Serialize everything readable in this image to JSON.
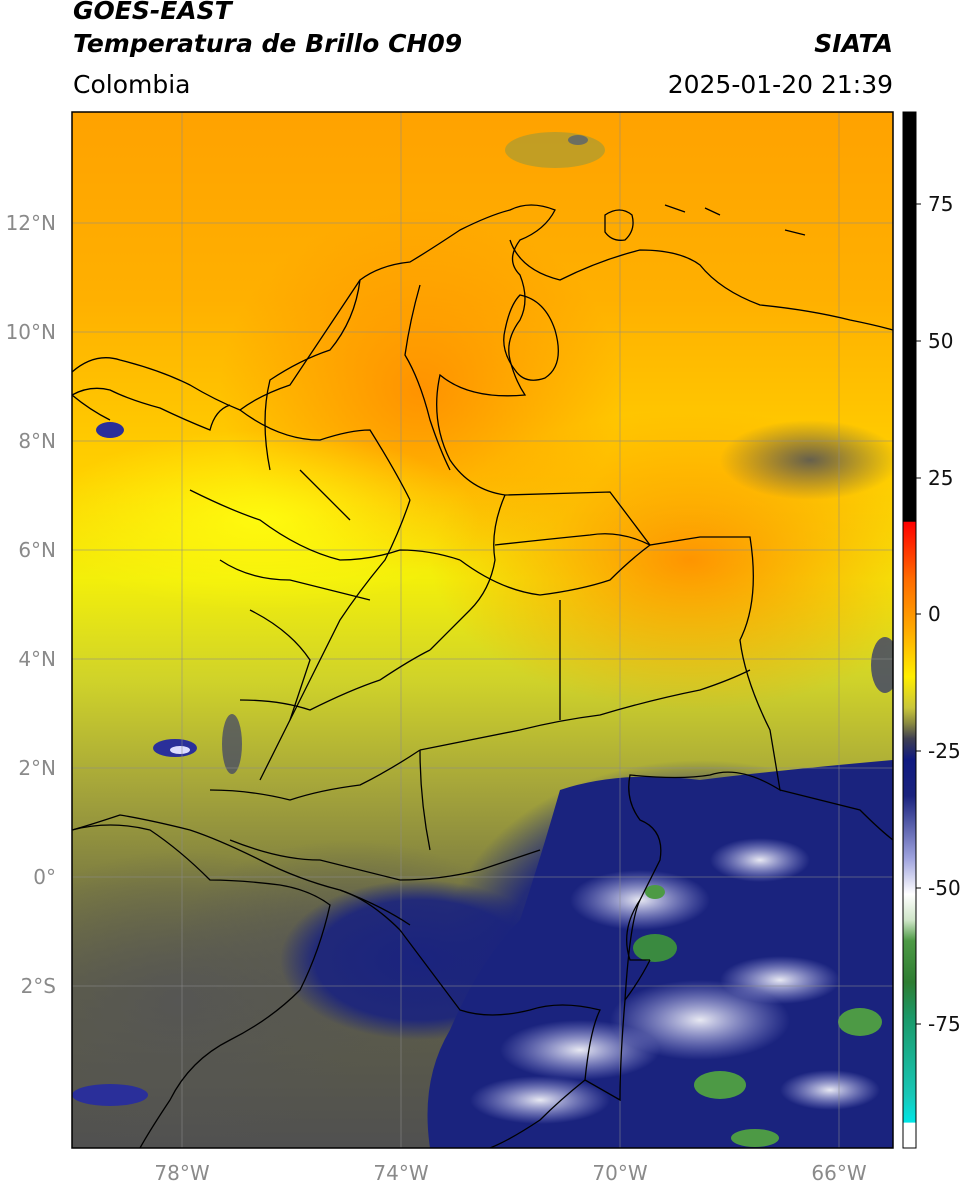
{
  "header": {
    "satellite": "GOES-EAST",
    "product": "Temperatura de Brillo CH09",
    "agency": "SIATA",
    "region": "Colombia",
    "timestamp": "2025-01-20 21:39"
  },
  "map": {
    "lat_labels": [
      "12°N",
      "10°N",
      "8°N",
      "6°N",
      "4°N",
      "2°N",
      "0°",
      "2°S"
    ],
    "lon_labels": [
      "78°W",
      "74°W",
      "70°W",
      "66°W"
    ],
    "lon_range": [
      -80,
      -65
    ],
    "lat_range": [
      -5,
      14
    ],
    "gridlines": true
  },
  "colorbar": {
    "ticks": [
      "75",
      "50",
      "25",
      "0",
      "-25",
      "-50",
      "-75"
    ],
    "range": [
      -95,
      90
    ],
    "colors": {
      "black": "#000000",
      "red": "#e01a10",
      "orange": "#ff8c00",
      "yellow": "#fff200",
      "olive": "#9a9a2a",
      "gray": "#505050",
      "navy": "#1a237e",
      "white": "#ffffff",
      "green": "#2e8b3c",
      "cyan": "#10d8d0"
    }
  }
}
